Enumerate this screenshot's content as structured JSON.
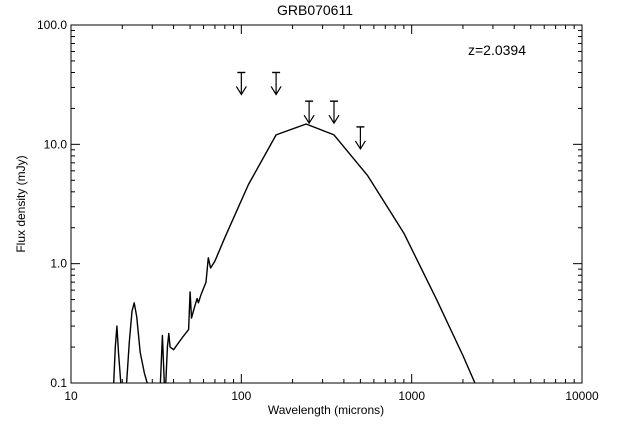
{
  "chart_data": {
    "type": "line",
    "title": "GRB070611",
    "xlabel": "Wavelength (microns)",
    "ylabel": "Flux density (mJy)",
    "xscale": "log",
    "yscale": "log",
    "xlim": [
      10,
      10000
    ],
    "ylim": [
      0.1,
      100
    ],
    "x_ticks": [
      {
        "value": 10,
        "label": "10"
      },
      {
        "value": 100,
        "label": "100"
      },
      {
        "value": 1000,
        "label": "1000"
      },
      {
        "value": 10000,
        "label": "10000"
      }
    ],
    "y_ticks": [
      {
        "value": 0.1,
        "label": "0.1"
      },
      {
        "value": 1,
        "label": "1.0"
      },
      {
        "value": 10,
        "label": "10.0"
      },
      {
        "value": 100,
        "label": "100.0"
      }
    ],
    "annotation": "z=2.0394",
    "series": [
      {
        "color": "#000000",
        "segments": [
          [
            [
              17.8,
              0.1
            ],
            [
              18.2,
              0.2
            ],
            [
              18.6,
              0.3
            ],
            [
              19.0,
              0.18
            ],
            [
              19.6,
              0.1
            ]
          ],
          [
            [
              21.2,
              0.1
            ],
            [
              22.0,
              0.22
            ],
            [
              22.8,
              0.4
            ],
            [
              23.5,
              0.47
            ],
            [
              24.3,
              0.36
            ],
            [
              25.5,
              0.18
            ],
            [
              27.0,
              0.12
            ],
            [
              28.0,
              0.1
            ]
          ],
          [
            [
              33.5,
              0.1
            ],
            [
              34.4,
              0.25
            ],
            [
              35.3,
              0.1
            ]
          ],
          [
            [
              36.0,
              0.1
            ],
            [
              36.8,
              0.2
            ],
            [
              37.5,
              0.26
            ],
            [
              38.2,
              0.2
            ],
            [
              40.0,
              0.19
            ],
            [
              45.0,
              0.24
            ],
            [
              49.0,
              0.28
            ],
            [
              50.0,
              0.58
            ],
            [
              51.0,
              0.35
            ],
            [
              53.0,
              0.43
            ],
            [
              55.0,
              0.51
            ],
            [
              56.0,
              0.47
            ],
            [
              58.0,
              0.55
            ],
            [
              60.0,
              0.62
            ],
            [
              62.0,
              0.7
            ],
            [
              64.0,
              1.12
            ],
            [
              66.0,
              0.92
            ],
            [
              70.0,
              1.05
            ],
            [
              80.0,
              1.65
            ],
            [
              110.0,
              4.6
            ],
            [
              160.0,
              12.0
            ],
            [
              240.0,
              14.8
            ],
            [
              350.0,
              12.0
            ],
            [
              550.0,
              5.5
            ],
            [
              900.0,
              1.8
            ],
            [
              1400.0,
              0.5
            ],
            [
              2000.0,
              0.17
            ],
            [
              2350.0,
              0.1
            ]
          ]
        ]
      }
    ],
    "upper_limits": [
      {
        "x": 100,
        "y": 40
      },
      {
        "x": 160,
        "y": 40
      },
      {
        "x": 250,
        "y": 23
      },
      {
        "x": 350,
        "y": 23
      },
      {
        "x": 500,
        "y": 14
      }
    ]
  }
}
